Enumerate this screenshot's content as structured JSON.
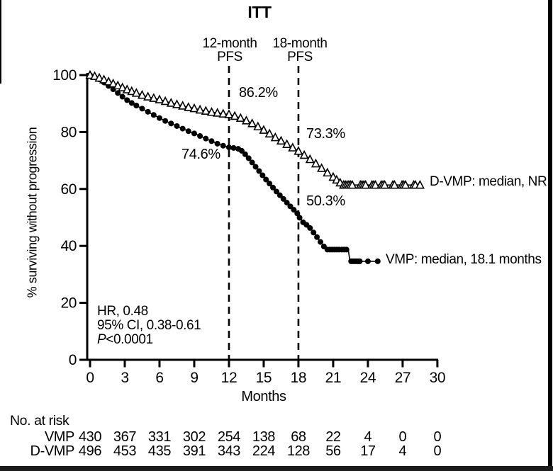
{
  "chart_data": {
    "type": "line",
    "subtype": "kaplan-meier",
    "title": "ITT",
    "xlabel": "Months",
    "ylabel": "% surviving without progression",
    "xlim": [
      0,
      30
    ],
    "ylim": [
      0,
      100
    ],
    "xticks": [
      0,
      3,
      6,
      9,
      12,
      15,
      18,
      21,
      24,
      27,
      30
    ],
    "yticks": [
      0,
      20,
      40,
      60,
      80,
      100
    ],
    "grid": false,
    "reference_lines": [
      {
        "x": 12,
        "label_line1": "12-month",
        "label_line2": "PFS"
      },
      {
        "x": 18,
        "label_line1": "18-month",
        "label_line2": "PFS"
      }
    ],
    "annotations": [
      {
        "text": "86.2%",
        "series": "D-VMP",
        "at_month": 12
      },
      {
        "text": "73.3%",
        "series": "D-VMP",
        "at_month": 18
      },
      {
        "text": "74.6%",
        "series": "VMP",
        "at_month": 12
      },
      {
        "text": "50.3%",
        "series": "VMP",
        "at_month": 18
      }
    ],
    "stats": {
      "hr": "HR, 0.48",
      "ci": "95% CI, 0.38-0.61",
      "p_label": "P",
      "p_value": "<0.0001"
    },
    "series": [
      {
        "name": "VMP",
        "marker": "filled-circle",
        "legend": "VMP: median, 18.1 months",
        "steps": [
          [
            0,
            100
          ],
          [
            0.4,
            99.3
          ],
          [
            0.8,
            98.5
          ],
          [
            1.2,
            97.4
          ],
          [
            1.6,
            96.2
          ],
          [
            2,
            95
          ],
          [
            2.4,
            93.7
          ],
          [
            2.8,
            92.4
          ],
          [
            3.2,
            91.2
          ],
          [
            3.6,
            90.2
          ],
          [
            4,
            89.3
          ],
          [
            4.5,
            88.2
          ],
          [
            5,
            87.1
          ],
          [
            5.5,
            86
          ],
          [
            6,
            84.9
          ],
          [
            6.5,
            83.9
          ],
          [
            7,
            83
          ],
          [
            7.5,
            82.1
          ],
          [
            8,
            81.2
          ],
          [
            8.5,
            80.3
          ],
          [
            9,
            79.5
          ],
          [
            9.5,
            78.6
          ],
          [
            10,
            77.7
          ],
          [
            10.5,
            76.8
          ],
          [
            11,
            75.9
          ],
          [
            11.5,
            75.2
          ],
          [
            12,
            74.6
          ],
          [
            12.4,
            74.4
          ],
          [
            12.8,
            74.1
          ],
          [
            13.1,
            73.4
          ],
          [
            13.4,
            72.2
          ],
          [
            13.7,
            70.8
          ],
          [
            14,
            69.3
          ],
          [
            14.3,
            67.8
          ],
          [
            14.6,
            66.3
          ],
          [
            14.9,
            64.8
          ],
          [
            15.2,
            63.3
          ],
          [
            15.5,
            61.9
          ],
          [
            15.8,
            60.5
          ],
          [
            16.1,
            59.1
          ],
          [
            16.4,
            57.8
          ],
          [
            16.7,
            56.5
          ],
          [
            17,
            55.2
          ],
          [
            17.3,
            53.9
          ],
          [
            17.6,
            52.7
          ],
          [
            17.9,
            51.4
          ],
          [
            18.1,
            49.9
          ],
          [
            18.4,
            48.3
          ],
          [
            18.7,
            47.4
          ],
          [
            19,
            46.3
          ],
          [
            19.3,
            44.7
          ],
          [
            19.6,
            43.1
          ],
          [
            19.9,
            41.4
          ],
          [
            20.2,
            39.8
          ],
          [
            20.5,
            38.7
          ],
          [
            22.3,
            38.7
          ],
          [
            22.45,
            34.6
          ],
          [
            24.9,
            34.6
          ]
        ],
        "tail_markers": [
          20.7,
          20.9,
          21.1,
          21.3,
          21.5,
          21.75,
          21.95,
          22.15,
          22.55,
          22.7,
          22.85,
          23,
          23.15,
          23.3,
          24,
          24.85
        ]
      },
      {
        "name": "D-VMP",
        "marker": "open-triangle",
        "legend": "D-VMP: median, NR",
        "steps": [
          [
            0,
            100
          ],
          [
            0.4,
            99.6
          ],
          [
            0.8,
            99
          ],
          [
            1.2,
            98.4
          ],
          [
            1.6,
            97.7
          ],
          [
            2,
            97
          ],
          [
            2.4,
            96.3
          ],
          [
            2.8,
            95.6
          ],
          [
            3.2,
            94.9
          ],
          [
            3.6,
            94.3
          ],
          [
            4,
            93.7
          ],
          [
            4.5,
            93
          ],
          [
            5,
            92.4
          ],
          [
            5.5,
            91.9
          ],
          [
            6,
            91.4
          ],
          [
            6.5,
            90.8
          ],
          [
            7,
            90.2
          ],
          [
            7.5,
            89.7
          ],
          [
            8,
            89.2
          ],
          [
            8.5,
            88.7
          ],
          [
            9,
            88.3
          ],
          [
            9.5,
            87.8
          ],
          [
            10,
            87.4
          ],
          [
            10.5,
            87
          ],
          [
            11,
            86.7
          ],
          [
            11.5,
            86.4
          ],
          [
            12,
            86.2
          ],
          [
            12.5,
            85.6
          ],
          [
            13,
            84.9
          ],
          [
            13.5,
            84
          ],
          [
            14,
            83
          ],
          [
            14.5,
            81.9
          ],
          [
            15,
            80.7
          ],
          [
            15.5,
            79.4
          ],
          [
            16,
            78.1
          ],
          [
            16.5,
            76.9
          ],
          [
            17,
            75.7
          ],
          [
            17.5,
            74.5
          ],
          [
            18,
            73.3
          ],
          [
            18.5,
            71.9
          ],
          [
            19,
            70.4
          ],
          [
            19.5,
            68.9
          ],
          [
            20,
            67.3
          ],
          [
            20.5,
            65.7
          ],
          [
            21,
            64.2
          ],
          [
            21.3,
            63.2
          ],
          [
            21.6,
            62.2
          ],
          [
            21.9,
            61.4
          ],
          [
            28.6,
            61.4
          ]
        ],
        "tail_markers": [
          22.05,
          22.2,
          22.35,
          22.5,
          22.65,
          23.35,
          23.5,
          23.65,
          23.8,
          24.35,
          24.5,
          24.65,
          25.15,
          25.3,
          25.45,
          26.15,
          26.3,
          26.95,
          27.1,
          27.25,
          27.95,
          28.1,
          28.5
        ]
      }
    ],
    "risk_table": {
      "header": "No. at risk",
      "months": [
        0,
        3,
        6,
        9,
        12,
        15,
        18,
        21,
        24,
        27,
        30
      ],
      "rows": [
        {
          "label": "VMP",
          "values": [
            430,
            367,
            331,
            302,
            254,
            138,
            68,
            22,
            4,
            0,
            0
          ]
        },
        {
          "label": "D-VMP",
          "values": [
            496,
            453,
            435,
            391,
            343,
            224,
            128,
            56,
            17,
            4,
            0
          ]
        }
      ]
    }
  }
}
